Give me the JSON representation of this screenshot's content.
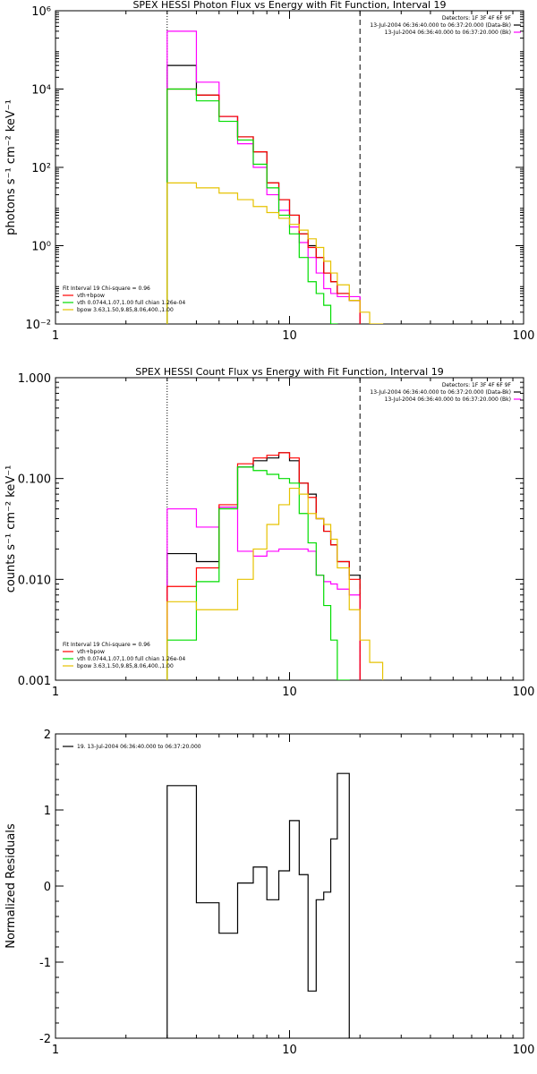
{
  "colors": {
    "data": "#000000",
    "bk": "#ff00ff",
    "total": "#ff0000",
    "vth": "#00dd00",
    "bpow": "#e6c200"
  },
  "chart_data": [
    {
      "type": "line",
      "xscale": "log",
      "yscale": "log",
      "title": "SPEX HESSI Photon Flux vs Energy with Fit Function, Interval 19",
      "xlabel": "",
      "ylabel": "photons s⁻¹ cm⁻² keV⁻¹",
      "xlim": [
        1,
        100
      ],
      "ylim": [
        0.01,
        1000000
      ],
      "xticks": [
        {
          "v": 1,
          "label": "1"
        },
        {
          "v": 10,
          "label": "10"
        },
        {
          "v": 100,
          "label": "100"
        }
      ],
      "yticks": [
        {
          "v": 0.01,
          "label": "10⁻²"
        },
        {
          "v": 1,
          "label": "10⁰"
        },
        {
          "v": 100,
          "label": "10²"
        },
        {
          "v": 10000,
          "label": "10⁴"
        },
        {
          "v": 1000000,
          "label": "10⁶"
        }
      ],
      "vlines": [
        {
          "x": 3,
          "style": "dotted"
        },
        {
          "x": 20,
          "style": "dashed"
        }
      ],
      "edges": [
        3,
        4,
        5,
        6,
        7,
        8,
        9,
        10,
        11,
        12,
        13,
        14,
        15,
        16,
        18,
        20,
        22,
        25
      ],
      "series": [
        {
          "name": "13-Jul-2004 06:36:40.000 to 06:37:20.000 (Data-Bk)",
          "color_key": "data",
          "values": [
            40000,
            7000,
            2000,
            600,
            250,
            40,
            15,
            6,
            2,
            1,
            0.5,
            0.2,
            0.12,
            0.06,
            0.04,
            null,
            null
          ]
        },
        {
          "name": "13-Jul-2004 06:36:40.000 to 06:37:20.000 (Bk)",
          "color_key": "bk",
          "values": [
            300000,
            15000,
            2000,
            400,
            100,
            20,
            8,
            3,
            1.2,
            0.5,
            0.2,
            0.08,
            0.06,
            0.05,
            0.05,
            null,
            null
          ]
        },
        {
          "name": "vth+bpow",
          "color_key": "total",
          "values": [
            10000,
            7000,
            2000,
            600,
            250,
            40,
            15,
            6,
            2,
            0.9,
            0.5,
            0.2,
            0.12,
            0.06,
            0.04,
            null,
            null
          ]
        },
        {
          "name": "vth 0.0744,1.07,1.00  full chian 1.26e-04",
          "color_key": "vth",
          "values": [
            10000,
            5000,
            1500,
            500,
            120,
            30,
            6,
            2,
            0.5,
            0.12,
            0.06,
            0.03,
            0.01,
            null,
            null,
            null,
            null
          ]
        },
        {
          "name": "bpow 3.63,1.50,9.85,8.06,400.,1.00",
          "color_key": "bpow",
          "values": [
            40,
            30,
            22,
            15,
            10,
            7,
            5,
            3.5,
            2.5,
            1.5,
            0.9,
            0.4,
            0.2,
            0.1,
            0.04,
            0.02,
            0.01
          ]
        }
      ],
      "header": [
        "Detectors: 1F 3F 4F 6F 9F",
        "13-Jul-2004 06:36:40.000 to 06:37:20.000 (Data-Bk)",
        "13-Jul-2004 06:36:40.000 to 06:37:20.000 (Bk)"
      ],
      "header_keys": [
        "",
        "data",
        "bk"
      ],
      "legend_title": "Fit Interval 19   Chi-square = 0.96",
      "legend": [
        {
          "label": "vth+bpow",
          "color_key": "total"
        },
        {
          "label": "vth 0.0744,1.07,1.00  full chian 1.26e-04",
          "color_key": "vth"
        },
        {
          "label": "bpow 3.63,1.50,9.85,8.06,400.,1.00",
          "color_key": "bpow"
        }
      ]
    },
    {
      "type": "line",
      "xscale": "log",
      "yscale": "log",
      "title": "SPEX HESSI Count Flux vs Energy with Fit Function, Interval 19",
      "xlabel": "",
      "ylabel": "counts s⁻¹ cm⁻² keV⁻¹",
      "xlim": [
        1,
        100
      ],
      "ylim": [
        0.001,
        1
      ],
      "xticks": [
        {
          "v": 1,
          "label": "1"
        },
        {
          "v": 10,
          "label": "10"
        },
        {
          "v": 100,
          "label": "100"
        }
      ],
      "yticks": [
        {
          "v": 0.001,
          "label": "0.001"
        },
        {
          "v": 0.01,
          "label": "0.010"
        },
        {
          "v": 0.1,
          "label": "0.100"
        },
        {
          "v": 1,
          "label": "1.000"
        }
      ],
      "vlines": [
        {
          "x": 3,
          "style": "dotted"
        },
        {
          "x": 20,
          "style": "dashed"
        }
      ],
      "edges": [
        3,
        4,
        5,
        6,
        7,
        8,
        9,
        10,
        11,
        12,
        13,
        14,
        15,
        16,
        18,
        20,
        22,
        25
      ],
      "series": [
        {
          "name": "13-Jul-2004 06:36:40.000 to 06:37:20.000 (Data-Bk)",
          "color_key": "data",
          "values": [
            0.018,
            0.015,
            0.052,
            0.13,
            0.15,
            0.16,
            0.18,
            0.15,
            0.09,
            0.07,
            0.04,
            0.03,
            0.022,
            0.015,
            0.011,
            null,
            null
          ]
        },
        {
          "name": "13-Jul-2004 06:36:40.000 to 06:37:20.000 (Bk)",
          "color_key": "bk",
          "values": [
            0.05,
            0.033,
            0.052,
            0.019,
            0.017,
            0.019,
            0.02,
            0.02,
            0.02,
            0.019,
            0.011,
            0.0095,
            0.009,
            0.008,
            0.007,
            null,
            null
          ]
        },
        {
          "name": "vth+bpow",
          "color_key": "total",
          "values": [
            0.0085,
            0.013,
            0.055,
            0.14,
            0.16,
            0.17,
            0.18,
            0.16,
            0.09,
            0.065,
            0.04,
            0.03,
            0.022,
            0.015,
            0.01,
            null,
            null
          ]
        },
        {
          "name": "vth 0.0744,1.07,1.00  full chian 1.26e-04",
          "color_key": "vth",
          "values": [
            0.0025,
            0.0095,
            0.05,
            0.13,
            0.12,
            0.11,
            0.1,
            0.09,
            0.045,
            0.023,
            0.011,
            0.0055,
            0.0025,
            0.001,
            null,
            null,
            null
          ]
        },
        {
          "name": "bpow 3.63,1.50,9.85,8.06,400.,1.00",
          "color_key": "bpow",
          "values": [
            0.006,
            0.005,
            0.005,
            0.01,
            0.02,
            0.035,
            0.055,
            0.08,
            0.07,
            0.045,
            0.04,
            0.035,
            0.025,
            0.013,
            0.005,
            0.0025,
            0.0015
          ]
        }
      ],
      "header": [
        "Detectors: 1F 3F 4F 6F 9F",
        "13-Jul-2004 06:36:40.000 to 06:37:20.000 (Data-Bk)",
        "13-Jul-2004 06:36:40.000 to 06:37:20.000 (Bk)"
      ],
      "header_keys": [
        "",
        "data",
        "bk"
      ],
      "legend_title": "Fit Interval 19   Chi-square = 0.96",
      "legend": [
        {
          "label": "vth+bpow",
          "color_key": "total"
        },
        {
          "label": "vth 0.0744,1.07,1.00  full chian 1.26e-04",
          "color_key": "vth"
        },
        {
          "label": "bpow 3.63,1.50,9.85,8.06,400.,1.00",
          "color_key": "bpow"
        }
      ]
    },
    {
      "type": "line",
      "xscale": "log",
      "yscale": "linear",
      "title": "",
      "xlabel": "",
      "ylabel": "Normalized Residuals",
      "xlim": [
        1,
        100
      ],
      "ylim": [
        -2,
        2
      ],
      "xticks": [
        {
          "v": 1,
          "label": "1"
        },
        {
          "v": 10,
          "label": "10"
        },
        {
          "v": 100,
          "label": "100"
        }
      ],
      "yticks": [
        {
          "v": -2,
          "label": "-2"
        },
        {
          "v": -1,
          "label": "-1"
        },
        {
          "v": 0,
          "label": "0"
        },
        {
          "v": 1,
          "label": "1"
        },
        {
          "v": 2,
          "label": "2"
        }
      ],
      "vlines": [],
      "edges": [
        3,
        4,
        5,
        6,
        7,
        8,
        9,
        10,
        11,
        12,
        13,
        14,
        15,
        16,
        18,
        20
      ],
      "series": [
        {
          "name": "19. 13-Jul-2004 06:36:40.000 to 06:37:20.000",
          "color_key": "data",
          "values": [
            1.32,
            -0.22,
            -0.62,
            0.04,
            0.25,
            -0.18,
            0.2,
            0.86,
            0.15,
            -1.38,
            -0.18,
            -0.08,
            0.62,
            1.48,
            null
          ],
          "drop_to_bottom": true
        }
      ],
      "header": [],
      "header_keys": [],
      "legend_title": "",
      "legend": [
        {
          "label": "19. 13-Jul-2004 06:36:40.000 to 06:37:20.000",
          "color_key": "data"
        }
      ]
    }
  ]
}
